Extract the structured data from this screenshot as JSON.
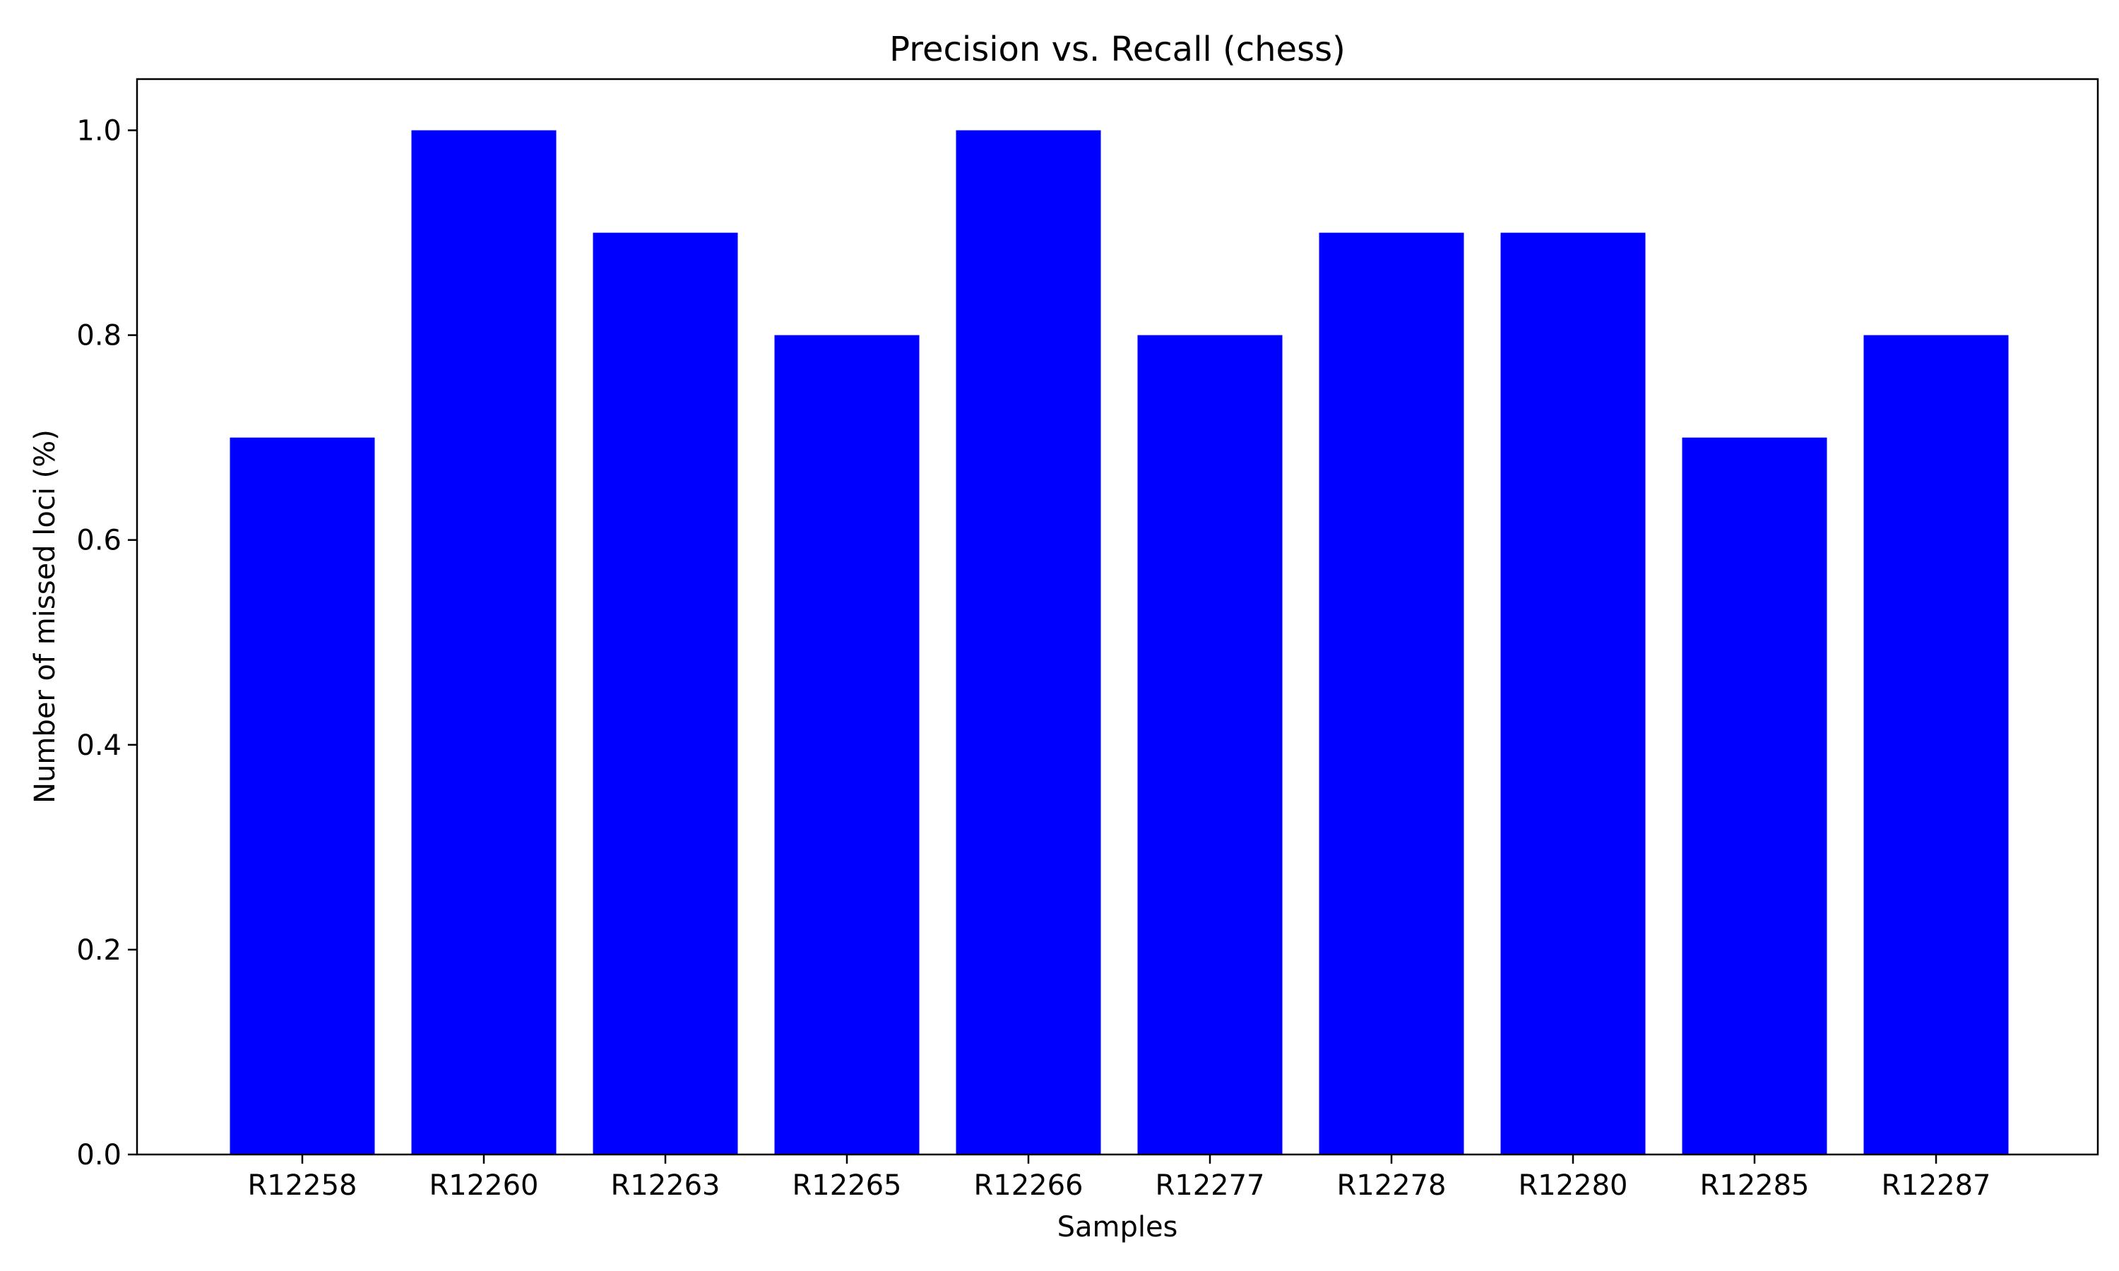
{
  "chart_data": {
    "type": "bar",
    "title": "Precision vs. Recall (chess)",
    "xlabel": "Samples",
    "ylabel": "Number of missed loci (%)",
    "categories": [
      "R12258",
      "R12260",
      "R12263",
      "R12265",
      "R12266",
      "R12277",
      "R12278",
      "R12280",
      "R12285",
      "R12287"
    ],
    "values": [
      0.7,
      1.0,
      0.9,
      0.8,
      1.0,
      0.8,
      0.9,
      0.9,
      0.7,
      0.8
    ],
    "ylim": [
      0,
      1.05
    ],
    "yticks": [
      0.0,
      0.2,
      0.4,
      0.6,
      0.8,
      1.0
    ],
    "ytick_labels": [
      "0.0",
      "0.2",
      "0.4",
      "0.6",
      "0.8",
      "1.0"
    ],
    "grid": false,
    "bar_color": "#0000ff"
  }
}
